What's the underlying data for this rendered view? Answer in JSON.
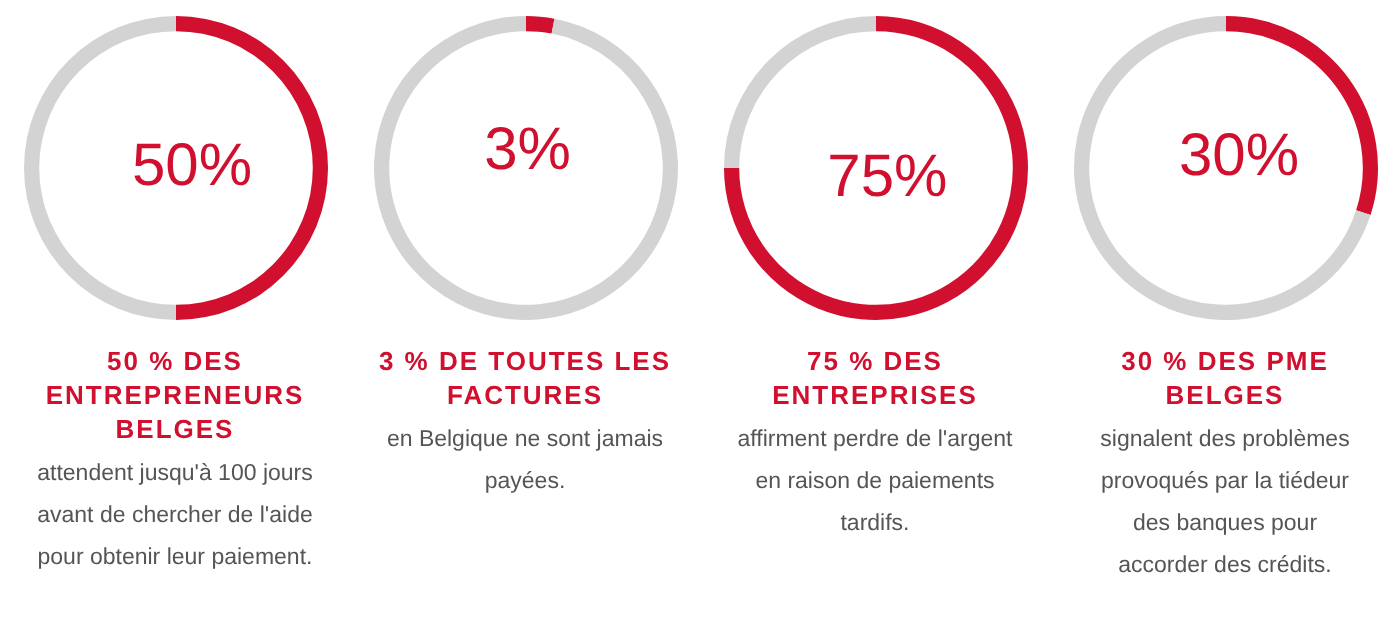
{
  "chart_data": [
    {
      "type": "donut",
      "title": "50 % DES ENTREPRENEURS BELGES",
      "subtitle": "attendent jusqu'à 100 jours avant de chercher de l'aide pour obtenir leur paiement.",
      "categories": [
        null,
        null
      ],
      "values": [
        50,
        50
      ],
      "colors": [
        "#d0102e",
        "#d3d3d3"
      ],
      "value_labels": [
        "50%",
        null
      ],
      "legend": false
    },
    {
      "type": "donut",
      "title": "3 % DE TOUTES LES FACTURES",
      "subtitle": "en Belgique ne sont jamais payées.",
      "categories": [
        null,
        null
      ],
      "values": [
        3,
        97
      ],
      "colors": [
        "#d0102e",
        "#d3d3d3"
      ],
      "value_labels": [
        "3%",
        null
      ],
      "legend": false
    },
    {
      "type": "donut",
      "title": "75 % DES ENTREPRISES",
      "subtitle": "affirment perdre de l'argent en raison de paiements tardifs.",
      "categories": [
        null,
        null
      ],
      "values": [
        75,
        25
      ],
      "colors": [
        "#d0102e",
        "#d3d3d3"
      ],
      "value_labels": [
        "75%",
        null
      ],
      "legend": false
    },
    {
      "type": "donut",
      "title": "30 % DES PME BELGES",
      "subtitle": "signalent des problèmes provoqués par la tiédeur des banques pour accorder des crédits.",
      "categories": [
        null,
        null
      ],
      "values": [
        30,
        70
      ],
      "colors": [
        "#d0102e",
        "#d3d3d3"
      ],
      "value_labels": [
        "30%",
        null
      ],
      "legend": false
    }
  ]
}
